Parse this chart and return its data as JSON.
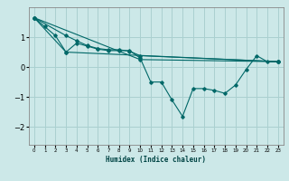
{
  "xlabel": "Humidex (Indice chaleur)",
  "ylabel": "",
  "background_color": "#cce8e8",
  "grid_color": "#aad0d0",
  "line_color": "#006868",
  "xlim": [
    -0.5,
    23.5
  ],
  "ylim": [
    -2.6,
    2.0
  ],
  "yticks": [
    -2,
    -1,
    0,
    1
  ],
  "xticks": [
    0,
    1,
    2,
    3,
    4,
    5,
    6,
    7,
    8,
    9,
    10,
    11,
    12,
    13,
    14,
    15,
    16,
    17,
    18,
    19,
    20,
    21,
    22,
    23
  ],
  "series": [
    {
      "x": [
        0,
        1,
        2,
        3,
        4,
        5,
        6,
        7,
        8,
        9,
        10,
        11,
        12,
        13,
        14,
        15,
        16,
        17,
        18,
        19,
        20,
        21,
        22,
        23
      ],
      "y": [
        1.65,
        1.35,
        1.05,
        0.5,
        0.8,
        0.7,
        0.6,
        0.55,
        0.55,
        0.55,
        0.3,
        -0.5,
        -0.5,
        -1.1,
        -1.65,
        -0.72,
        -0.72,
        -0.78,
        -0.88,
        -0.6,
        -0.08,
        0.38,
        0.18,
        0.18
      ]
    },
    {
      "x": [
        0,
        3,
        4,
        5,
        6,
        7,
        8,
        9,
        10,
        23
      ],
      "y": [
        1.65,
        1.05,
        0.88,
        0.72,
        0.62,
        0.58,
        0.58,
        0.53,
        0.38,
        0.18
      ]
    },
    {
      "x": [
        0,
        3,
        23
      ],
      "y": [
        1.65,
        0.5,
        0.18
      ]
    },
    {
      "x": [
        0,
        10,
        23
      ],
      "y": [
        1.65,
        0.25,
        0.18
      ]
    }
  ]
}
